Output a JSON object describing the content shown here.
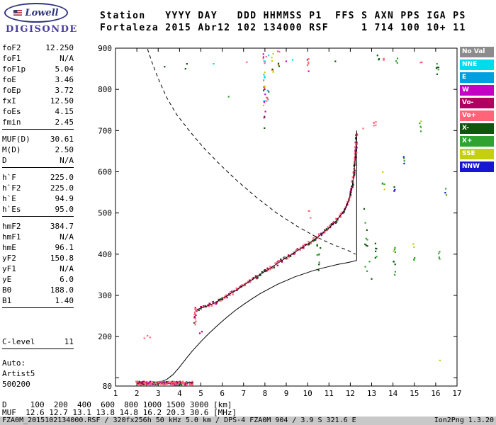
{
  "logo": {
    "name": "Lowell",
    "brand": "DIGISONDE"
  },
  "header": {
    "line1": "Station   YYYY DAY   DDD HHMMSS P1  FFS S AXN PPS IGA PS",
    "line2": "Fortaleza 2015 Abr12 102 134000 RSF     1 714 100 10+ 11"
  },
  "params": {
    "groups": [
      {
        "underline": true,
        "rows": [
          [
            "foF2",
            "12.250"
          ],
          [
            "foF1",
            "N/A"
          ],
          [
            "foF1p",
            "5.04"
          ],
          [
            "foE",
            "3.46"
          ],
          [
            "foEp",
            "3.72"
          ],
          [
            "fxI",
            "12.50"
          ],
          [
            "foEs",
            "4.15"
          ],
          [
            "fmin",
            "2.45"
          ]
        ]
      },
      {
        "underline": true,
        "rows": [
          [
            "MUF(D)",
            "30.61"
          ],
          [
            "M(D)",
            "2.50"
          ],
          [
            "D",
            "N/A"
          ]
        ]
      },
      {
        "underline": true,
        "rows": [
          [
            "h`F",
            "225.0"
          ],
          [
            "h`F2",
            "225.0"
          ],
          [
            "h`E",
            "94.9"
          ],
          [
            "h`Es",
            "95.0"
          ]
        ]
      },
      {
        "underline": true,
        "rows": [
          [
            "hmF2",
            "384.7"
          ],
          [
            "hmF1",
            "N/A"
          ],
          [
            "hmE",
            "96.1"
          ],
          [
            "yF2",
            "150.8"
          ],
          [
            "yF1",
            "N/A"
          ],
          [
            "yE",
            "6.0"
          ],
          [
            "B0",
            "188.0"
          ],
          [
            "B1",
            "1.40"
          ]
        ]
      },
      {
        "underline": true,
        "gap": "large",
        "rows": [
          [
            "C-level",
            "11"
          ]
        ]
      },
      {
        "underline": false,
        "gap": "small",
        "rows": [
          [
            "Auto:",
            ""
          ],
          [
            "Artist5",
            ""
          ],
          [
            "500200",
            ""
          ]
        ]
      }
    ]
  },
  "legend": {
    "items": [
      {
        "key": "NoVal",
        "label": "No Val"
      },
      {
        "key": "NNE",
        "label": "NNE"
      },
      {
        "key": "E",
        "label": "E"
      },
      {
        "key": "W",
        "label": "W"
      },
      {
        "key": "Vo-",
        "label": "Vo-"
      },
      {
        "key": "Vo+",
        "label": "Vo+"
      },
      {
        "key": "X-",
        "label": "X-"
      },
      {
        "key": "X+",
        "label": "X+"
      },
      {
        "key": "SSE",
        "label": "SSE"
      },
      {
        "key": "NNW",
        "label": "NNW"
      }
    ]
  },
  "colors": {
    "NoVal": "#8c8c8c",
    "NNE": "#00dcec",
    "E": "#00a0e0",
    "W": "#c400c4",
    "Vo-": "#b00060",
    "Vo+": "#ff6478",
    "X-": "#115511",
    "X+": "#2fa32f",
    "SSE": "#c3cf10",
    "NNW": "#1616d2"
  },
  "bottom": {
    "d_line": "D     100  200  400  600  800 1000 1500 3000 [km]",
    "muf_line": "MUF  12.6 12.7 13.1 13.8 14.8 16.2 20.3 30.6 [MHz]",
    "status_left": "FZA0M_2015102134000.RSF / 320fx256h 50 kHz 5.0 km / DPS-4 FZA0M 904 / 3.9 S 321.6 E",
    "status_right": "Ion2Png 1.3.20"
  },
  "chart_data": {
    "type": "scatter",
    "title": "Digisonde ionogram - Fortaleza 2015 Apr 12 13:40:00",
    "xlabel": "[MHz]",
    "ylabel": "[km]",
    "xlim": [
      1,
      17
    ],
    "ylim": [
      80,
      900
    ],
    "x_ticks": [
      1,
      2,
      3,
      4,
      5,
      6,
      7,
      8,
      9,
      10,
      11,
      12,
      13,
      14,
      15,
      16,
      17
    ],
    "y_ticks": [
      80,
      100,
      200,
      300,
      400,
      500,
      600,
      700,
      800,
      900
    ],
    "y_tick_labels": [
      900,
      800,
      700,
      600,
      500,
      400,
      300,
      200,
      80
    ],
    "grid": false,
    "legend_position": "right",
    "f_trace_virtual_height": [
      [
        4.82,
        266
      ],
      [
        5.0,
        269
      ],
      [
        5.3,
        274
      ],
      [
        5.6,
        281
      ],
      [
        5.9,
        289
      ],
      [
        6.2,
        298
      ],
      [
        6.5,
        308
      ],
      [
        6.8,
        318
      ],
      [
        7.1,
        328
      ],
      [
        7.4,
        338
      ],
      [
        7.7,
        348
      ],
      [
        8.0,
        358
      ],
      [
        8.3,
        368
      ],
      [
        8.6,
        378
      ],
      [
        8.9,
        388
      ],
      [
        9.2,
        398
      ],
      [
        9.5,
        408
      ],
      [
        9.8,
        418
      ],
      [
        10.1,
        428
      ],
      [
        10.4,
        439
      ],
      [
        10.7,
        451
      ],
      [
        11.0,
        464
      ],
      [
        11.3,
        479
      ],
      [
        11.6,
        497
      ],
      [
        11.8,
        514
      ],
      [
        11.95,
        535
      ],
      [
        12.08,
        562
      ],
      [
        12.17,
        595
      ],
      [
        12.23,
        630
      ],
      [
        12.27,
        662
      ],
      [
        12.3,
        696
      ]
    ],
    "f_trace_start_cluster": {
      "f": 4.72,
      "h_min": 228,
      "h_max": 272,
      "n": 16
    },
    "e_trace": {
      "f_start": 1.95,
      "f_end": 4.62,
      "height": 87,
      "spread": 8,
      "n": 260
    },
    "trace_color_mix": [
      [
        "Vo+",
        0.5
      ],
      [
        "Vo-",
        0.25
      ],
      [
        "X-",
        0.15
      ],
      [
        "W",
        0.05
      ],
      [
        "NoVal",
        0.05
      ]
    ],
    "profile_solid": [
      [
        2.05,
        83
      ],
      [
        2.4,
        84
      ],
      [
        2.8,
        86
      ],
      [
        3.1,
        90
      ],
      [
        3.4,
        96
      ],
      [
        3.7,
        108
      ],
      [
        4.0,
        126
      ],
      [
        4.3,
        146
      ],
      [
        4.6,
        165
      ],
      [
        5.0,
        188
      ],
      [
        5.4,
        209
      ],
      [
        5.8,
        228
      ],
      [
        6.2,
        246
      ],
      [
        6.6,
        263
      ],
      [
        7.0,
        278
      ],
      [
        7.4,
        292
      ],
      [
        7.8,
        305
      ],
      [
        8.2,
        316
      ],
      [
        8.6,
        327
      ],
      [
        9.0,
        336
      ],
      [
        9.4,
        345
      ],
      [
        9.8,
        352
      ],
      [
        10.2,
        359
      ],
      [
        10.6,
        365
      ],
      [
        11.0,
        370
      ],
      [
        11.4,
        375
      ],
      [
        11.8,
        379
      ],
      [
        12.1,
        382
      ],
      [
        12.3,
        385
      ]
    ],
    "profile_dashed": [
      [
        2.5,
        898
      ],
      [
        2.75,
        860
      ],
      [
        3.05,
        820
      ],
      [
        3.4,
        780
      ],
      [
        3.85,
        740
      ],
      [
        4.45,
        700
      ],
      [
        5.1,
        660
      ],
      [
        5.85,
        620
      ],
      [
        6.7,
        578
      ],
      [
        7.6,
        538
      ],
      [
        8.55,
        500
      ],
      [
        9.5,
        468
      ],
      [
        10.4,
        442
      ],
      [
        11.2,
        423
      ],
      [
        11.85,
        410
      ],
      [
        12.25,
        400
      ]
    ],
    "critical_frequency_line": [
      [
        12.3,
        385
      ],
      [
        12.3,
        700
      ]
    ],
    "noise_clusters": [
      {
        "f": 7.98,
        "h1": 698,
        "h2": 898,
        "n": 26,
        "colors": [
          "Vo+",
          "X-",
          "NNE",
          "SSE",
          "W",
          "Vo-"
        ]
      },
      {
        "f": 8.12,
        "h1": 760,
        "h2": 900,
        "n": 10,
        "colors": [
          "Vo+",
          "NNE",
          "X-"
        ]
      },
      {
        "f": 8.38,
        "h1": 828,
        "h2": 898,
        "n": 7,
        "colors": [
          "Vo+",
          "X-",
          "SSE"
        ]
      },
      {
        "f": 8.62,
        "h1": 855,
        "h2": 898,
        "n": 5,
        "colors": [
          "X-",
          "Vo+"
        ]
      },
      {
        "f": 10.05,
        "h1": 838,
        "h2": 880,
        "n": 6,
        "colors": [
          "Vo+",
          "W"
        ]
      },
      {
        "f": 10.1,
        "h1": 488,
        "h2": 512,
        "n": 3,
        "colors": [
          "Vo+"
        ]
      },
      {
        "f": 10.5,
        "h1": 342,
        "h2": 425,
        "n": 7,
        "colors": [
          "X+",
          "X-"
        ]
      },
      {
        "f": 12.75,
        "h1": 348,
        "h2": 505,
        "n": 8,
        "colors": [
          "X-",
          "X+"
        ]
      },
      {
        "f": 13.15,
        "h1": 688,
        "h2": 732,
        "n": 5,
        "colors": [
          "Vo+"
        ]
      },
      {
        "f": 13.2,
        "h1": 378,
        "h2": 432,
        "n": 6,
        "colors": [
          "X+",
          "X-"
        ]
      },
      {
        "f": 13.3,
        "h1": 858,
        "h2": 885,
        "n": 3,
        "colors": [
          "X-"
        ]
      },
      {
        "f": 13.55,
        "h1": 545,
        "h2": 602,
        "n": 5,
        "colors": [
          "X+",
          "SSE"
        ]
      },
      {
        "f": 13.6,
        "h1": 856,
        "h2": 884,
        "n": 4,
        "colors": [
          "Vo+"
        ]
      },
      {
        "f": 14.05,
        "h1": 345,
        "h2": 432,
        "n": 9,
        "colors": [
          "X+",
          "SSE",
          "X-"
        ]
      },
      {
        "f": 14.1,
        "h1": 548,
        "h2": 572,
        "n": 3,
        "colors": [
          "X-",
          "NNW"
        ]
      },
      {
        "f": 14.18,
        "h1": 852,
        "h2": 876,
        "n": 3,
        "colors": [
          "X+"
        ]
      },
      {
        "f": 14.48,
        "h1": 598,
        "h2": 646,
        "n": 4,
        "colors": [
          "X+",
          "NNW"
        ]
      },
      {
        "f": 15.0,
        "h1": 378,
        "h2": 426,
        "n": 5,
        "colors": [
          "X+",
          "SSE"
        ]
      },
      {
        "f": 15.28,
        "h1": 698,
        "h2": 748,
        "n": 5,
        "colors": [
          "SSE",
          "X+"
        ]
      },
      {
        "f": 15.32,
        "h1": 852,
        "h2": 870,
        "n": 2,
        "colors": [
          "Vo+"
        ]
      },
      {
        "f": 16.08,
        "h1": 822,
        "h2": 862,
        "n": 6,
        "colors": [
          "X+",
          "X-"
        ]
      },
      {
        "f": 16.15,
        "h1": 382,
        "h2": 420,
        "n": 4,
        "colors": [
          "X+"
        ]
      },
      {
        "f": 16.5,
        "h1": 542,
        "h2": 582,
        "n": 3,
        "colors": [
          "X+",
          "NNW"
        ]
      }
    ],
    "stray_dots": [
      [
        2.35,
        196,
        "Vo+"
      ],
      [
        2.5,
        202,
        "Vo+"
      ],
      [
        2.62,
        198,
        "Vo+"
      ],
      [
        3.3,
        855,
        "X-"
      ],
      [
        4.28,
        850,
        "X-"
      ],
      [
        4.35,
        862,
        "X-"
      ],
      [
        5.6,
        862,
        "NNE"
      ],
      [
        6.3,
        782,
        "X+"
      ],
      [
        7.15,
        866,
        "Vo+"
      ],
      [
        9.0,
        868,
        "W"
      ],
      [
        9.3,
        872,
        "NNE"
      ],
      [
        10.45,
        398,
        "X+"
      ],
      [
        10.55,
        380,
        "X+"
      ],
      [
        10.6,
        415,
        "X-"
      ],
      [
        11.3,
        868,
        "X-"
      ],
      [
        12.6,
        705,
        "Vo+"
      ],
      [
        12.65,
        510,
        "X-"
      ],
      [
        12.8,
        420,
        "X-"
      ],
      [
        12.9,
        382,
        "X+"
      ],
      [
        13.0,
        340,
        "X-"
      ],
      [
        16.2,
        142,
        "SSE"
      ],
      [
        5.05,
        212,
        "Vo-"
      ],
      [
        4.95,
        208,
        "Vo-"
      ]
    ]
  }
}
